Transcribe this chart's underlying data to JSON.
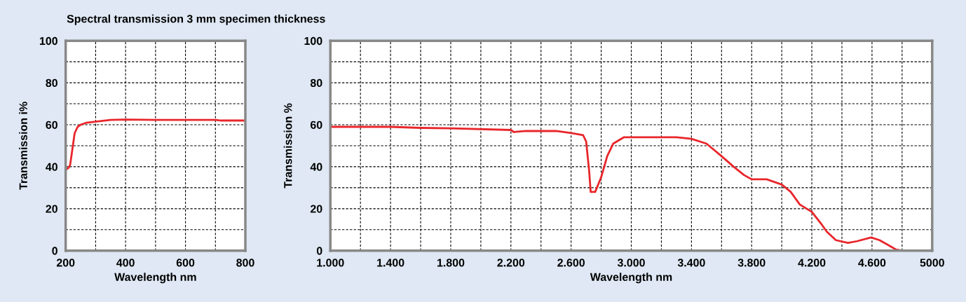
{
  "chart_data": [
    {
      "type": "line",
      "title": "Spectral transmission 3 mm specimen thickness",
      "xlabel": "Wavelength nm",
      "ylabel": "Transmission i%",
      "grid": true,
      "line_style": "solid",
      "xlim": [
        200,
        800
      ],
      "ylim": [
        0,
        100
      ],
      "xticks": [
        200,
        {
          "value": 300,
          "label": null
        },
        400,
        {
          "value": 500,
          "label": null
        },
        600,
        {
          "value": 700,
          "label": null
        },
        800
      ],
      "yticks": [
        0,
        {
          "value": 10,
          "label": null
        },
        20,
        {
          "value": 30,
          "label": null
        },
        40,
        {
          "value": 50,
          "label": null
        },
        60,
        {
          "value": 70,
          "label": null
        },
        80,
        {
          "value": 90,
          "label": null
        },
        100
      ],
      "series": [
        {
          "color": "#e8262b",
          "x": [
            200,
            210,
            215,
            220,
            225,
            230,
            240,
            250,
            270,
            300,
            350,
            400,
            500,
            600,
            700,
            720,
            800
          ],
          "values": [
            38.5,
            39.5,
            41,
            46,
            51,
            56,
            59,
            60,
            61,
            61.5,
            62.3,
            62.5,
            62.3,
            62.3,
            62.3,
            62,
            62
          ]
        }
      ]
    },
    {
      "type": "line",
      "xlabel": "Wavelength nm",
      "ylabel": "Transmission %",
      "grid": true,
      "line_style": "solid",
      "xlim": [
        1000,
        5000
      ],
      "ylim": [
        0,
        100
      ],
      "xticks": [
        {
          "value": 1000,
          "label": "1.000"
        },
        {
          "value": 1200,
          "label": null
        },
        {
          "value": 1400,
          "label": "1.400"
        },
        {
          "value": 1600,
          "label": null
        },
        {
          "value": 1800,
          "label": "1.800"
        },
        {
          "value": 2000,
          "label": null
        },
        {
          "value": 2200,
          "label": "2.200"
        },
        {
          "value": 2400,
          "label": null
        },
        {
          "value": 2600,
          "label": "2.600"
        },
        {
          "value": 2800,
          "label": null
        },
        {
          "value": 3000,
          "label": "3.000"
        },
        {
          "value": 3200,
          "label": null
        },
        {
          "value": 3400,
          "label": "3.400"
        },
        {
          "value": 3600,
          "label": null
        },
        {
          "value": 3800,
          "label": "3.800"
        },
        {
          "value": 4000,
          "label": null
        },
        {
          "value": 4200,
          "label": "4.200"
        },
        {
          "value": 4400,
          "label": null
        },
        {
          "value": 4600,
          "label": "4.600"
        },
        {
          "value": 4800,
          "label": null
        },
        5000
      ],
      "yticks": [
        0,
        {
          "value": 10,
          "label": null
        },
        20,
        {
          "value": 30,
          "label": null
        },
        40,
        {
          "value": 50,
          "label": null
        },
        60,
        {
          "value": 70,
          "label": null
        },
        80,
        {
          "value": 90,
          "label": null
        },
        100
      ],
      "series": [
        {
          "color": "#e8262b",
          "x": [
            1000,
            1400,
            1600,
            1800,
            2200,
            2220,
            2300,
            2500,
            2600,
            2680,
            2700,
            2720,
            2730,
            2760,
            2800,
            2840,
            2880,
            2950,
            3000,
            3200,
            3300,
            3400,
            3500,
            3600,
            3680,
            3750,
            3800,
            3900,
            4000,
            4060,
            4120,
            4200,
            4260,
            4300,
            4360,
            4440,
            4500,
            4594,
            4650,
            4700,
            4760,
            4800,
            4920
          ],
          "values": [
            59,
            59,
            58.5,
            58.3,
            57.5,
            56.5,
            57,
            57,
            56,
            55,
            52,
            38,
            28,
            28,
            35,
            45,
            51,
            54,
            54,
            54,
            54,
            53.3,
            51,
            45,
            40,
            36,
            34,
            34,
            31.5,
            28,
            22,
            18.5,
            13,
            9,
            5,
            3.7,
            4.5,
            6.3,
            5,
            3,
            0.5,
            0,
            0
          ]
        }
      ]
    }
  ]
}
